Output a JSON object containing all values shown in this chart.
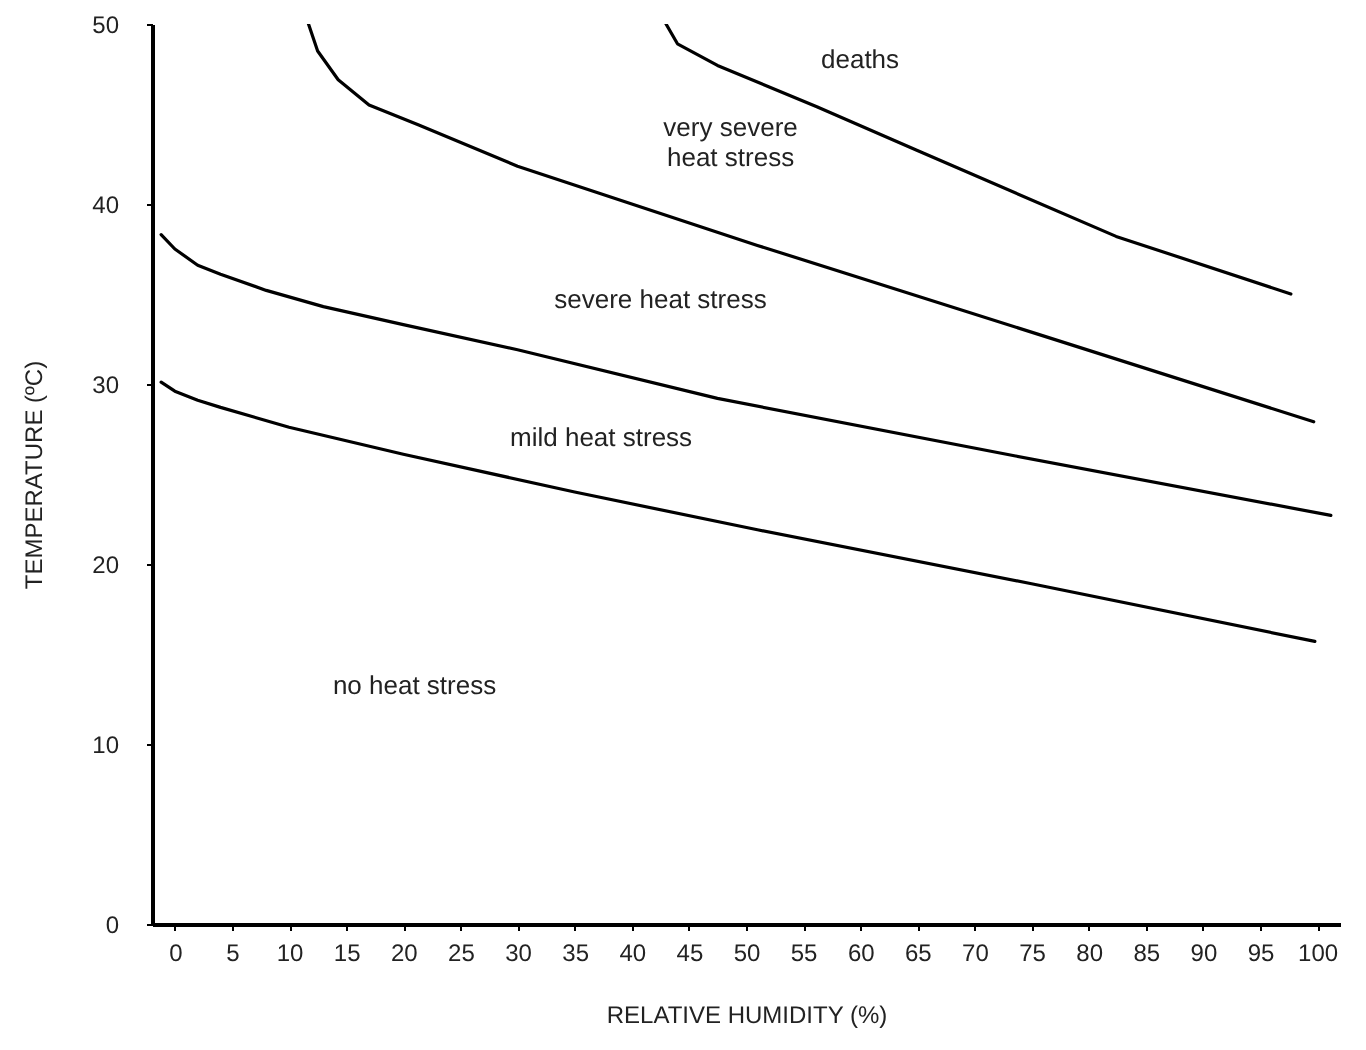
{
  "chart_data": {
    "type": "line",
    "xlabel": "RELATIVE HUMIDITY (%)",
    "ylabel": "TEMPERATURE (ºC)",
    "xlim": [
      -2,
      102
    ],
    "ylim": [
      0,
      50
    ],
    "xticks": [
      0,
      5,
      10,
      15,
      20,
      25,
      30,
      35,
      40,
      45,
      50,
      55,
      60,
      65,
      70,
      75,
      80,
      85,
      90,
      95,
      100
    ],
    "yticks": [
      0,
      10,
      20,
      30,
      40,
      50
    ],
    "grid": false,
    "marker": "none",
    "line_style": "solid",
    "series": [
      {
        "color": "#000000",
        "x": [
          -1.2,
          0,
          2,
          4,
          10,
          20,
          35,
          51,
          75,
          99.8
        ],
        "values": [
          30.1,
          29.6,
          29.1,
          28.7,
          27.6,
          26.1,
          24,
          21.9,
          18.9,
          15.7
        ]
      },
      {
        "color": "#000000",
        "x": [
          -1.2,
          0,
          2,
          4,
          8,
          13,
          20,
          30,
          47.5,
          73.6,
          101.2
        ],
        "values": [
          38.3,
          37.5,
          36.6,
          36.1,
          35.2,
          34.3,
          33.3,
          31.9,
          29.2,
          26,
          22.7
        ]
      },
      {
        "color": "#000000",
        "x": [
          11.7,
          12.5,
          14.3,
          17,
          21.3,
          30,
          51,
          75.4,
          99.7
        ],
        "values": [
          50,
          48.5,
          46.9,
          45.5,
          44.4,
          42.1,
          37.7,
          32.8,
          27.9
        ]
      },
      {
        "color": "#000000",
        "x": [
          43,
          44,
          47.5,
          56.2,
          64.9,
          82.4,
          97.7
        ],
        "values": [
          50,
          48.9,
          47.7,
          45.4,
          43,
          38.2,
          35
        ]
      }
    ],
    "annotations": [
      "deaths",
      "very severe\nheat stress",
      "severe heat stress",
      "mild heat stress",
      "no heat stress"
    ]
  }
}
